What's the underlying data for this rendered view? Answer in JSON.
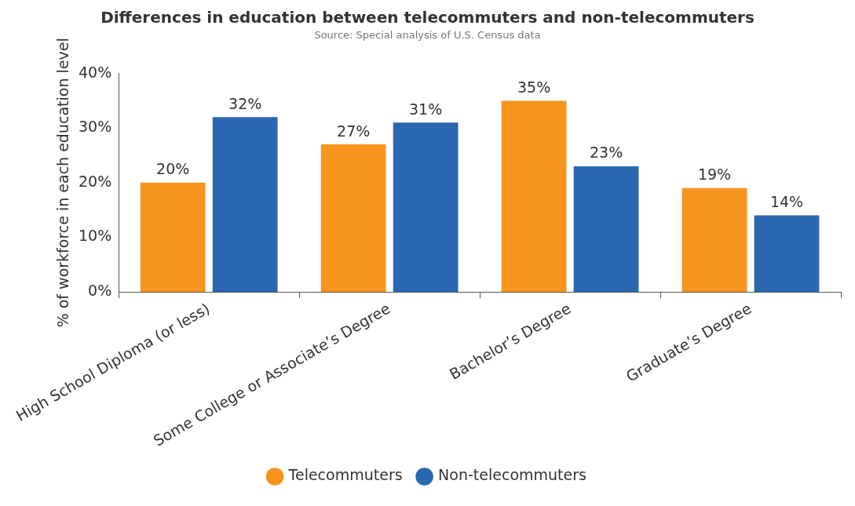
{
  "chart_data": {
    "type": "bar",
    "title": "Differences in education between telecommuters and non-telecommuters",
    "subtitle": "Source: Special analysis of U.S. Census data",
    "ylabel": "% of workforce in each education level",
    "categories": [
      "High School Diploma (or less)",
      "Some College or Associate’s Degree",
      "Bachelor’s Degree",
      "Graduate’s Degree"
    ],
    "series": [
      {
        "name": "Telecommuters",
        "color": "#f7941d",
        "values": [
          20,
          27,
          35,
          19
        ],
        "value_labels": [
          "20%",
          "27%",
          "35%",
          "19%"
        ]
      },
      {
        "name": "Non-telecommuters",
        "color": "#2b67b1",
        "values": [
          32,
          31,
          23,
          14
        ],
        "value_labels": [
          "32%",
          "31%",
          "23%",
          "14%"
        ]
      }
    ],
    "ylim": [
      0,
      40
    ],
    "yticks": [
      {
        "value": 0,
        "label": "0%"
      },
      {
        "value": 10,
        "label": "10%"
      },
      {
        "value": 20,
        "label": "20%"
      },
      {
        "value": 30,
        "label": "30%"
      },
      {
        "value": 40,
        "label": "40%"
      }
    ],
    "legend": "bottom"
  }
}
